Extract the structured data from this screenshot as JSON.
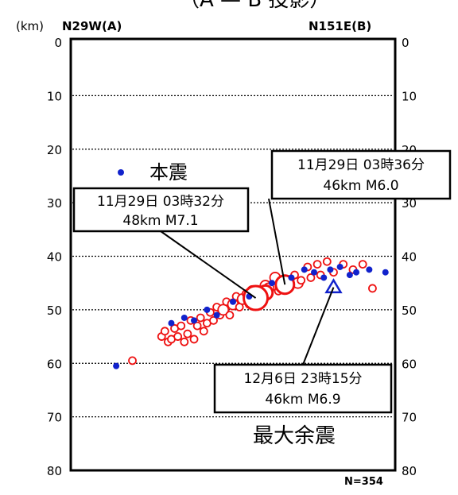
{
  "chart_data": {
    "type": "scatter",
    "title_fragment": "（A — B 投影）",
    "unit_label": "(km)",
    "left_end_label": "N29W(A)",
    "right_end_label": "N151E(B)",
    "ylim": [
      0,
      80
    ],
    "y_inverted": true,
    "y_ticks": [
      "0",
      "10",
      "20",
      "30",
      "40",
      "50",
      "60",
      "70",
      "80"
    ],
    "grid": "horizontal dotted",
    "count_label": "N=354",
    "legend": {
      "marker": "blue-dot",
      "text": "本震",
      "placement": "upper-left"
    },
    "colors": {
      "aftershock": "#ee1111",
      "mainshock": "#1122cc",
      "count": "#1133ee"
    },
    "series": [
      {
        "name": "本震",
        "marker": "filled-blue-dot",
        "points": [
          [
            0.14,
            60.5
          ],
          [
            0.31,
            52.5
          ],
          [
            0.35,
            51.5
          ],
          [
            0.38,
            52.0
          ],
          [
            0.42,
            50.0
          ],
          [
            0.45,
            51.0
          ],
          [
            0.5,
            48.5
          ],
          [
            0.55,
            47.5
          ],
          [
            0.62,
            45.0
          ],
          [
            0.68,
            44.0
          ],
          [
            0.72,
            42.5
          ],
          [
            0.75,
            43.0
          ],
          [
            0.8,
            42.5
          ],
          [
            0.83,
            42.0
          ],
          [
            0.88,
            43.0
          ],
          [
            0.92,
            42.5
          ],
          [
            0.97,
            43.0
          ],
          [
            0.78,
            44.0
          ],
          [
            0.86,
            43.5
          ]
        ]
      },
      {
        "name": "",
        "marker": "open-red-circle",
        "points": [
          [
            0.19,
            59.5,
            1
          ],
          [
            0.28,
            55.0,
            1
          ],
          [
            0.29,
            54.0,
            1
          ],
          [
            0.3,
            56.0,
            1
          ],
          [
            0.31,
            55.5,
            1
          ],
          [
            0.32,
            53.5,
            1
          ],
          [
            0.33,
            55.0,
            1
          ],
          [
            0.34,
            53.0,
            1
          ],
          [
            0.35,
            56.0,
            1
          ],
          [
            0.36,
            54.5,
            1
          ],
          [
            0.37,
            52.0,
            1
          ],
          [
            0.38,
            55.5,
            1
          ],
          [
            0.39,
            53.0,
            1
          ],
          [
            0.4,
            51.5,
            1
          ],
          [
            0.41,
            54.0,
            1
          ],
          [
            0.42,
            52.5,
            1
          ],
          [
            0.43,
            50.5,
            1
          ],
          [
            0.44,
            52.0,
            1
          ],
          [
            0.45,
            49.5,
            1
          ],
          [
            0.46,
            51.0,
            1
          ],
          [
            0.47,
            50.0,
            2
          ],
          [
            0.48,
            48.5,
            1
          ],
          [
            0.49,
            51.0,
            1
          ],
          [
            0.5,
            49.0,
            2
          ],
          [
            0.51,
            47.5,
            1
          ],
          [
            0.52,
            49.5,
            1
          ],
          [
            0.53,
            48.0,
            2
          ],
          [
            0.54,
            47.0,
            1
          ],
          [
            0.55,
            49.0,
            1
          ],
          [
            0.56,
            46.5,
            2
          ],
          [
            0.57,
            48.5,
            1
          ],
          [
            0.58,
            47.5,
            1
          ],
          [
            0.6,
            45.5,
            2
          ],
          [
            0.61,
            46.0,
            2
          ],
          [
            0.63,
            44.0,
            2
          ],
          [
            0.64,
            46.5,
            1
          ],
          [
            0.66,
            44.5,
            2
          ],
          [
            0.67,
            45.5,
            1
          ],
          [
            0.69,
            43.5,
            1
          ],
          [
            0.7,
            45.0,
            2
          ],
          [
            0.71,
            44.5,
            1
          ],
          [
            0.73,
            42.0,
            1
          ],
          [
            0.74,
            44.0,
            1
          ],
          [
            0.76,
            41.5,
            1
          ],
          [
            0.77,
            43.5,
            1
          ],
          [
            0.79,
            41.0,
            1
          ],
          [
            0.81,
            43.0,
            1
          ],
          [
            0.84,
            41.5,
            1
          ],
          [
            0.87,
            42.5,
            1
          ],
          [
            0.9,
            41.5,
            1
          ],
          [
            0.93,
            46.0,
            1
          ],
          [
            0.6,
            46.8,
            3
          ],
          [
            0.66,
            45.3,
            4
          ],
          [
            0.57,
            47.8,
            5
          ]
        ]
      },
      {
        "name": "最大余震",
        "marker": "open-blue-triangle",
        "points": [
          [
            0.81,
            45.8
          ]
        ]
      }
    ],
    "annotations": [
      {
        "date": "11月29日 03時32分",
        "info": "48km M7.1",
        "target": [
          0.57,
          47.8
        ]
      },
      {
        "date": "11月29日 03時36分",
        "info": "46km M6.0",
        "target": [
          0.66,
          45.3
        ]
      },
      {
        "date": "12月6日 23時15分",
        "info": "46km M6.9",
        "target": [
          0.81,
          45.8
        ]
      }
    ],
    "largest_aftershock_label": "最大余震"
  }
}
